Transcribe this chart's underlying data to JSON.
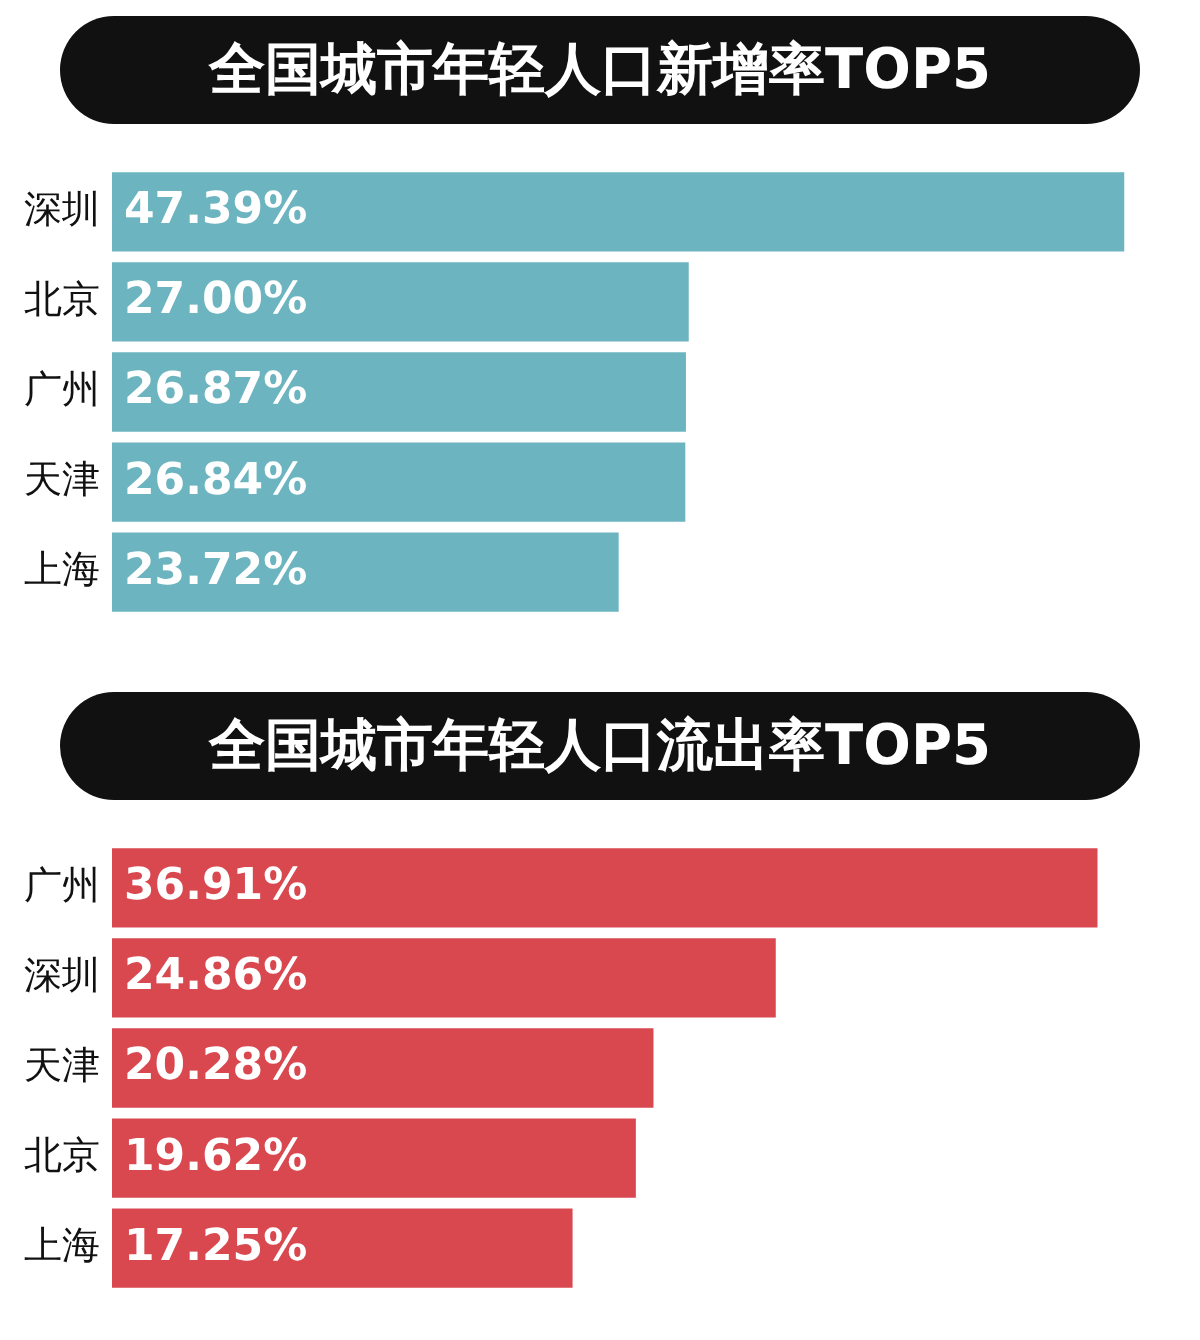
{
  "chart_data": [
    {
      "type": "bar",
      "orientation": "horizontal",
      "title": "全国城市年轻人口新增率TOP5",
      "categories": [
        "深圳",
        "北京",
        "广州",
        "天津",
        "上海"
      ],
      "values": [
        47.39,
        27.0,
        26.87,
        26.84,
        23.72
      ],
      "value_labels": [
        "47.39%",
        "27.00%",
        "26.87%",
        "26.84%",
        "23.72%"
      ],
      "color": "#6cb4bf",
      "tick_labels": "y",
      "grid": false,
      "legend": false
    },
    {
      "type": "bar",
      "orientation": "horizontal",
      "title": "全国城市年轻人口流出率TOP5",
      "categories": [
        "广州",
        "深圳",
        "天津",
        "北京",
        "上海"
      ],
      "values": [
        36.91,
        24.86,
        20.28,
        19.62,
        17.25
      ],
      "value_labels": [
        "36.91%",
        "24.86%",
        "20.28%",
        "19.62%",
        "17.25%"
      ],
      "color": "#d9474f",
      "tick_labels": "y",
      "grid": false,
      "legend": false
    }
  ]
}
